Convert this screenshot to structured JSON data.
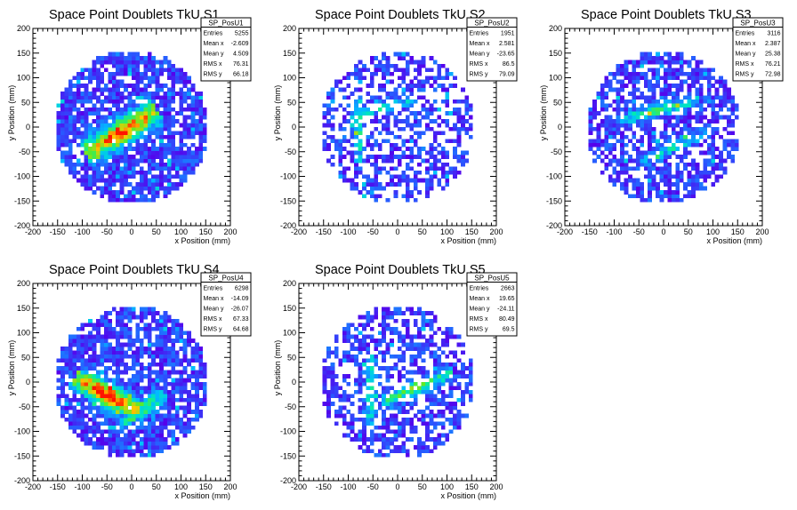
{
  "chart_data": [
    {
      "type": "heatmap",
      "title": "Space Point Doublets TkU S1",
      "xlabel": "x Position (mm)",
      "ylabel": "y Position (mm)",
      "xlim": [
        -200,
        200
      ],
      "ylim": [
        -200,
        200
      ],
      "xticks": [
        "-200",
        "-150",
        "-100",
        "-50",
        "0",
        "50",
        "100",
        "150",
        "200"
      ],
      "yticks": [
        "-200",
        "-150",
        "-100",
        "-50",
        "0",
        "50",
        "100",
        "150",
        "200"
      ],
      "stats": {
        "name": "SP_PosU1",
        "rows": [
          {
            "label": "Entries",
            "value": "5255"
          },
          {
            "label": "Mean x",
            "value": "-2.609"
          },
          {
            "label": "Mean y",
            "value": "4.509"
          },
          {
            "label": "RMS x",
            "value": "76.31"
          },
          {
            "label": "RMS y",
            "value": "66.18"
          }
        ]
      },
      "density": "high",
      "features": [
        {
          "dir": [
            1,
            0.6
          ],
          "cx": -20,
          "cy": -10,
          "w": 18,
          "len": 170,
          "amp": 0.85
        }
      ],
      "seed": 11
    },
    {
      "type": "heatmap",
      "title": "Space Point Doublets TkU S2",
      "xlabel": "x Position (mm)",
      "ylabel": "y Position (mm)",
      "xlim": [
        -200,
        200
      ],
      "ylim": [
        -200,
        200
      ],
      "xticks": [
        "-200",
        "-150",
        "-100",
        "-50",
        "0",
        "50",
        "100",
        "150",
        "200"
      ],
      "yticks": [
        "-200",
        "-150",
        "-100",
        "-50",
        "0",
        "50",
        "100",
        "150",
        "200"
      ],
      "stats": {
        "name": "SP_PosU2",
        "rows": [
          {
            "label": "Entries",
            "value": "1951"
          },
          {
            "label": "Mean x",
            "value": "2.581"
          },
          {
            "label": "Mean y",
            "value": "-23.65"
          },
          {
            "label": "RMS x",
            "value": "86.5"
          },
          {
            "label": "RMS y",
            "value": "79.09"
          }
        ]
      },
      "density": "low",
      "features": [
        {
          "dir": [
            0,
            1
          ],
          "cx": -80,
          "cy": 0,
          "w": 6,
          "len": 150,
          "amp": 0.45
        },
        {
          "dir": [
            1,
            0.3
          ],
          "cx": -30,
          "cy": 40,
          "w": 8,
          "len": 140,
          "amp": 0.35
        }
      ],
      "seed": 23
    },
    {
      "type": "heatmap",
      "title": "Space Point Doublets TkU S3",
      "xlabel": "x Position (mm)",
      "ylabel": "y Position (mm)",
      "xlim": [
        -200,
        200
      ],
      "ylim": [
        -200,
        200
      ],
      "xticks": [
        "-200",
        "-150",
        "-100",
        "-50",
        "0",
        "50",
        "100",
        "150",
        "200"
      ],
      "yticks": [
        "-200",
        "-150",
        "-100",
        "-50",
        "0",
        "50",
        "100",
        "150",
        "200"
      ],
      "stats": {
        "name": "SP_PosU3",
        "rows": [
          {
            "label": "Entries",
            "value": "3116"
          },
          {
            "label": "Mean x",
            "value": "2.387"
          },
          {
            "label": "Mean y",
            "value": "25.38"
          },
          {
            "label": "RMS x",
            "value": "76.21"
          },
          {
            "label": "RMS y",
            "value": "72.98"
          }
        ]
      },
      "density": "mid",
      "features": [
        {
          "dir": [
            1,
            0.25
          ],
          "cx": -10,
          "cy": 35,
          "w": 9,
          "len": 170,
          "amp": 0.45
        },
        {
          "dir": [
            1,
            0.45
          ],
          "cx": 20,
          "cy": -40,
          "w": 8,
          "len": 150,
          "amp": 0.35
        }
      ],
      "seed": 37
    },
    {
      "type": "heatmap",
      "title": "Space Point Doublets TkU S4",
      "xlabel": "x Position (mm)",
      "ylabel": "y Position (mm)",
      "xlim": [
        -200,
        200
      ],
      "ylim": [
        -200,
        200
      ],
      "xticks": [
        "-200",
        "-150",
        "-100",
        "-50",
        "0",
        "50",
        "100",
        "150",
        "200"
      ],
      "yticks": [
        "-200",
        "-150",
        "-100",
        "-50",
        "0",
        "50",
        "100",
        "150",
        "200"
      ],
      "stats": {
        "name": "SP_PosU4",
        "rows": [
          {
            "label": "Entries",
            "value": "6298"
          },
          {
            "label": "Mean x",
            "value": "-14.09"
          },
          {
            "label": "Mean y",
            "value": "-26.07"
          },
          {
            "label": "RMS x",
            "value": "67.33"
          },
          {
            "label": "RMS y",
            "value": "64.68"
          }
        ]
      },
      "density": "high",
      "features": [
        {
          "dir": [
            1,
            -0.55
          ],
          "cx": -50,
          "cy": -25,
          "w": 16,
          "len": 150,
          "amp": 0.9
        },
        {
          "dir": [
            1,
            0.7
          ],
          "cx": 20,
          "cy": -55,
          "w": 12,
          "len": 110,
          "amp": 0.5
        }
      ],
      "seed": 41
    },
    {
      "type": "heatmap",
      "title": "Space Point Doublets TkU S5",
      "xlabel": "x Position (mm)",
      "ylabel": "y Position (mm)",
      "xlim": [
        -200,
        200
      ],
      "ylim": [
        -200,
        200
      ],
      "xticks": [
        "-200",
        "-150",
        "-100",
        "-50",
        "0",
        "50",
        "100",
        "150",
        "200"
      ],
      "yticks": [
        "-200",
        "-150",
        "-100",
        "-50",
        "0",
        "50",
        "100",
        "150",
        "200"
      ],
      "stats": {
        "name": "SP_PosU5",
        "rows": [
          {
            "label": "Entries",
            "value": "2663"
          },
          {
            "label": "Mean x",
            "value": "19.65"
          },
          {
            "label": "Mean y",
            "value": "-24.11"
          },
          {
            "label": "RMS x",
            "value": "80.49"
          },
          {
            "label": "RMS y",
            "value": "69.5"
          }
        ]
      },
      "density": "low",
      "features": [
        {
          "dir": [
            0,
            1
          ],
          "cx": -55,
          "cy": -20,
          "w": 7,
          "len": 150,
          "amp": 0.4
        },
        {
          "dir": [
            1,
            0.45
          ],
          "cx": 40,
          "cy": -10,
          "w": 9,
          "len": 160,
          "amp": 0.55
        }
      ],
      "seed": 53
    }
  ]
}
